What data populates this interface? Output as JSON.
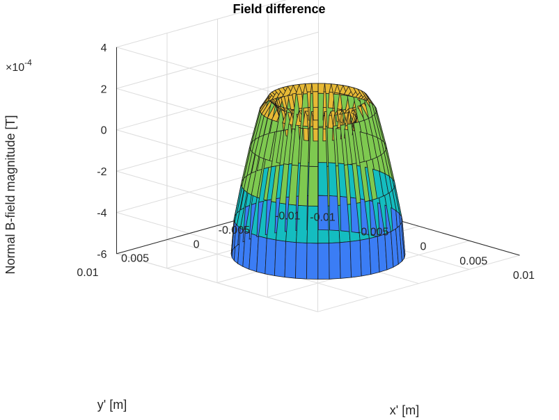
{
  "chart_data": {
    "type": "surface",
    "title": "Field difference",
    "xlabel": "x' [m]",
    "ylabel": "y' [m]",
    "zlabel": "Normal B-field magnitude [T]",
    "z_exponent_label": "×10",
    "z_exponent": "-4",
    "xlim": [
      -0.01,
      0.01
    ],
    "ylim": [
      -0.01,
      0.01
    ],
    "zlim": [
      -6,
      4
    ],
    "x_ticks": [
      "-0.01",
      "-0.005",
      "0",
      "0.005",
      "0.01"
    ],
    "y_ticks": [
      "-0.01",
      "-0.005",
      "0",
      "0.005",
      "0.01"
    ],
    "z_ticks": [
      "-6",
      "-4",
      "-2",
      "0",
      "2",
      "4"
    ],
    "grid": true,
    "colormap": [
      "#3b7df5",
      "#14bdc0",
      "#7ec950",
      "#e7b935",
      "#f9e62a"
    ],
    "surface_profile": {
      "description_radius_m": [
        0.0061,
        0.0059,
        0.0054,
        0.0048,
        0.0041,
        0.0035,
        0.003,
        0.0027,
        0.0026
      ],
      "z_e4_T": [
        -6.0,
        -4.3,
        -2.6,
        -0.8,
        1.0,
        1.6,
        1.3,
        0.6,
        0.0
      ]
    }
  }
}
